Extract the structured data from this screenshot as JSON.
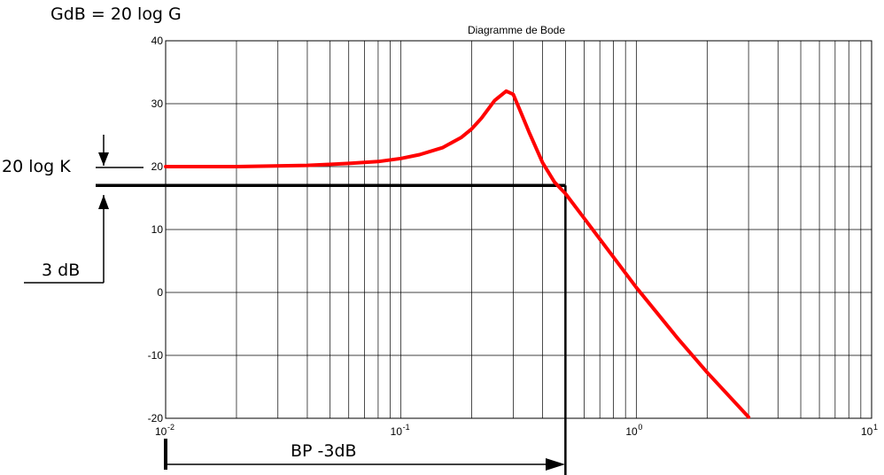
{
  "annotations": {
    "formula": "GdB = 20 log G",
    "k_label": "20 log K",
    "db3_label": "3 dB",
    "bp_label": "BP -3dB"
  },
  "chart_data": {
    "type": "line",
    "title": "Diagramme de Bode",
    "xscale": "log",
    "xlim": [
      0.01,
      10
    ],
    "ylim": [
      -20,
      40
    ],
    "grid": true,
    "x_ticks": [
      {
        "value": 0.01,
        "base": "10",
        "exp": "-2"
      },
      {
        "value": 0.1,
        "base": "10",
        "exp": "-1"
      },
      {
        "value": 1,
        "base": "10",
        "exp": "0"
      },
      {
        "value": 10,
        "base": "10",
        "exp": "1"
      }
    ],
    "y_ticks": [
      -20,
      -10,
      0,
      10,
      20,
      30,
      40
    ],
    "series": [
      {
        "color": "#ff0000",
        "x": [
          0.01,
          0.02,
          0.04,
          0.06,
          0.08,
          0.1,
          0.12,
          0.15,
          0.18,
          0.2,
          0.22,
          0.25,
          0.28,
          0.3,
          0.32,
          0.35,
          0.4,
          0.45,
          0.5,
          0.6,
          0.8,
          1.0,
          1.5,
          2.0,
          3.0
        ],
        "y": [
          20.0,
          20.0,
          20.2,
          20.5,
          20.8,
          21.3,
          21.9,
          23.0,
          24.6,
          26.0,
          27.7,
          30.5,
          32.0,
          31.5,
          29.0,
          25.5,
          20.6,
          17.5,
          15.7,
          11.8,
          5.6,
          0.8,
          -7.3,
          -12.7,
          -19.8
        ]
      }
    ],
    "reference_lines": {
      "db3_level": 17,
      "bandwidth_x": 0.5
    }
  }
}
